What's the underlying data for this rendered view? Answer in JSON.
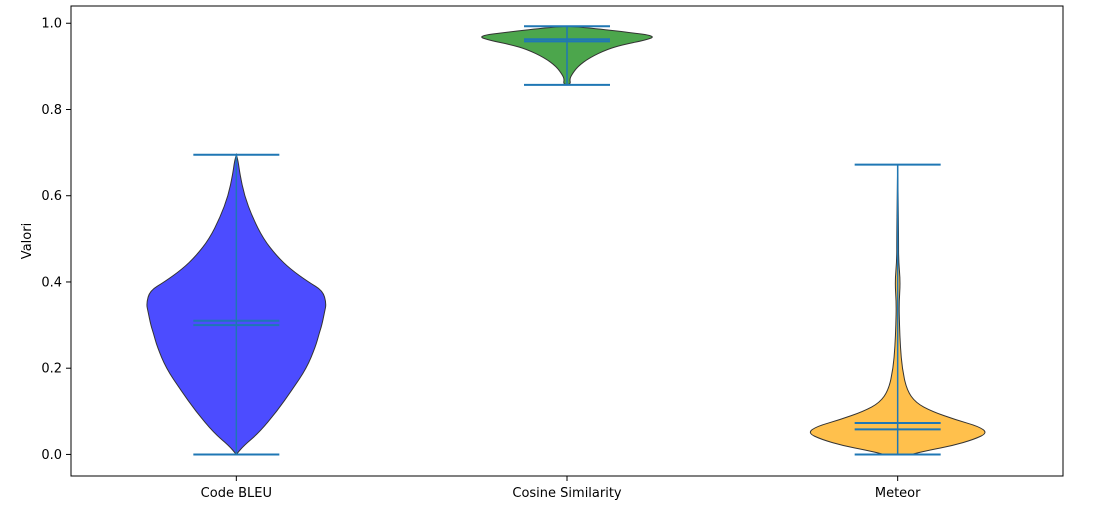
{
  "chart_data": {
    "type": "violin",
    "title": "",
    "xlabel": "",
    "ylabel": "Valori",
    "ylim": [
      -0.05,
      1.04
    ],
    "yticks": [
      0.0,
      0.2,
      0.4,
      0.6,
      0.8,
      1.0
    ],
    "ytick_labels": [
      "0.0",
      "0.2",
      "0.4",
      "0.6",
      "0.8",
      "1.0"
    ],
    "grid": false,
    "series": [
      {
        "name": "Code BLEU",
        "color": "#0000ff",
        "min": 0.0,
        "max": 0.695,
        "mean": 0.31,
        "median": 0.3,
        "density_profile": [
          [
            0.0,
            0.0
          ],
          [
            0.02,
            0.08
          ],
          [
            0.05,
            0.25
          ],
          [
            0.1,
            0.45
          ],
          [
            0.15,
            0.62
          ],
          [
            0.2,
            0.78
          ],
          [
            0.25,
            0.88
          ],
          [
            0.28,
            0.92
          ],
          [
            0.3,
            0.95
          ],
          [
            0.33,
            0.98
          ],
          [
            0.35,
            1.0
          ],
          [
            0.38,
            0.96
          ],
          [
            0.4,
            0.8
          ],
          [
            0.43,
            0.6
          ],
          [
            0.46,
            0.45
          ],
          [
            0.5,
            0.3
          ],
          [
            0.55,
            0.18
          ],
          [
            0.6,
            0.09
          ],
          [
            0.65,
            0.04
          ],
          [
            0.68,
            0.02
          ],
          [
            0.695,
            0.0
          ]
        ]
      },
      {
        "name": "Cosine Similarity",
        "color": "#008000",
        "min": 0.857,
        "max": 0.993,
        "mean": 0.963,
        "median": 0.958,
        "density_profile": [
          [
            0.857,
            0.0
          ],
          [
            0.86,
            0.04
          ],
          [
            0.87,
            0.03
          ],
          [
            0.88,
            0.05
          ],
          [
            0.9,
            0.12
          ],
          [
            0.92,
            0.25
          ],
          [
            0.94,
            0.45
          ],
          [
            0.95,
            0.62
          ],
          [
            0.96,
            0.85
          ],
          [
            0.97,
            1.0
          ],
          [
            0.98,
            0.65
          ],
          [
            0.99,
            0.2
          ],
          [
            0.993,
            0.0
          ]
        ]
      },
      {
        "name": "Meteor",
        "color": "#ffa500",
        "min": 0.0,
        "max": 0.672,
        "mean": 0.073,
        "median": 0.058,
        "density_profile": [
          [
            0.0,
            0.15
          ],
          [
            0.01,
            0.35
          ],
          [
            0.02,
            0.6
          ],
          [
            0.035,
            0.85
          ],
          [
            0.05,
            1.0
          ],
          [
            0.065,
            0.9
          ],
          [
            0.08,
            0.65
          ],
          [
            0.1,
            0.38
          ],
          [
            0.12,
            0.2
          ],
          [
            0.15,
            0.1
          ],
          [
            0.2,
            0.05
          ],
          [
            0.25,
            0.03
          ],
          [
            0.3,
            0.02
          ],
          [
            0.35,
            0.015
          ],
          [
            0.4,
            0.03
          ],
          [
            0.45,
            0.01
          ],
          [
            0.5,
            0.01
          ],
          [
            0.6,
            0.005
          ],
          [
            0.672,
            0.0
          ]
        ]
      }
    ]
  }
}
